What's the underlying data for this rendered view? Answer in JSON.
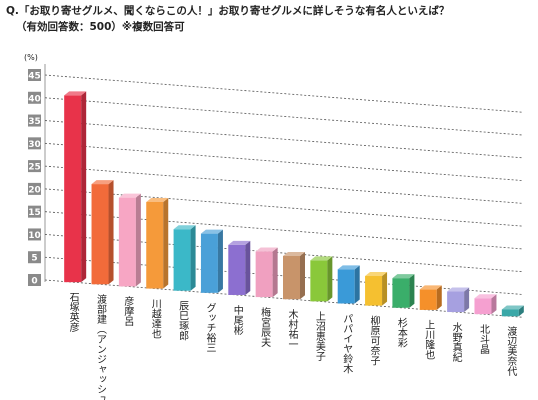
{
  "chart_data": {
    "type": "bar3d",
    "title": "Q.「お取り寄せグルメ、聞くならこの人！」お取り寄せグルメに詳しそうな有名人といえば？",
    "subtitle": "（有効回答数：500）※複数回答可",
    "y_label": "(%)",
    "categories": [
      "石塚英彦",
      "渡部建（アンジャッシュ）",
      "彦摩呂",
      "川越達也",
      "辰巳琢郎",
      "グッチ裕三",
      "中尾彬",
      "梅宮辰夫",
      "木村祐一",
      "上沼恵美子",
      "パパイヤ鈴木",
      "柳原可奈子",
      "杉本彩",
      "上川隆也",
      "水野真紀",
      "北斗晶",
      "渡辺美奈代"
    ],
    "values": [
      41,
      22,
      19.5,
      19,
      13.5,
      13,
      11,
      10,
      9.5,
      9,
      7.5,
      6.5,
      6.5,
      4.5,
      4.5,
      3.5,
      1.5
    ],
    "colors": [
      "#e8334a",
      "#f26b3a",
      "#f7a6c4",
      "#f59a3a",
      "#3bb8c8",
      "#4aa0d8",
      "#8c6fd0",
      "#f0a0c0",
      "#c8946a",
      "#8ac83a",
      "#3a9ad8",
      "#f5c030",
      "#3aae6a",
      "#f5902a",
      "#a6a0e0",
      "#f5a0d0",
      "#3aa8a8"
    ],
    "ylim": [
      0,
      45
    ],
    "yticks": [
      0,
      5,
      10,
      15,
      20,
      25,
      30,
      35,
      40,
      45
    ],
    "grid": true
  }
}
